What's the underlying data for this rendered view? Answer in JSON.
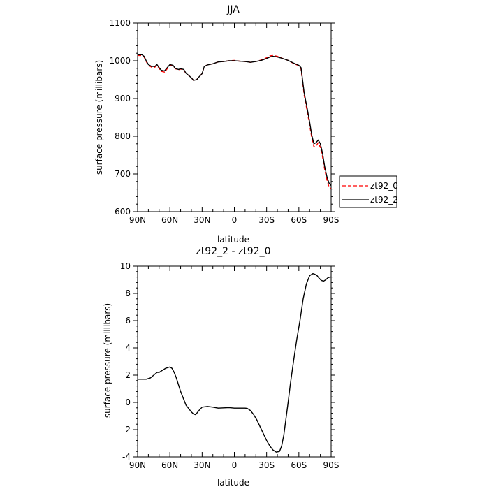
{
  "chart_data": [
    {
      "type": "line",
      "title": "JJA",
      "xlabel": "latitude",
      "ylabel": "surface pressure (millibars)",
      "xlim": [
        90,
        -90
      ],
      "ylim": [
        600,
        1100
      ],
      "x_ticks": [
        90,
        60,
        30,
        0,
        -30,
        -60,
        -90
      ],
      "x_tick_labels": [
        "90N",
        "60N",
        "30N",
        "0",
        "30S",
        "60S",
        "90S"
      ],
      "y_ticks": [
        600,
        700,
        800,
        900,
        1000,
        1100
      ],
      "y_tick_labels": [
        "600",
        "700",
        "800",
        "900",
        "1000",
        "1100"
      ],
      "grid": false,
      "legend": {
        "placement": "outside-right"
      },
      "series": [
        {
          "name": "zt92_0",
          "color": "#ff0000",
          "style": "dashed",
          "x": [
            90,
            86,
            84,
            82,
            80,
            77,
            74,
            72,
            70,
            68,
            65,
            63,
            60,
            57,
            55,
            52,
            50,
            47,
            45,
            42,
            40,
            38,
            35,
            33,
            30,
            28,
            25,
            20,
            15,
            10,
            5,
            0,
            -5,
            -10,
            -15,
            -20,
            -25,
            -30,
            -33,
            -36,
            -40,
            -45,
            -50,
            -55,
            -60,
            -62,
            -65,
            -68,
            -70,
            -72,
            -74,
            -76,
            -78,
            -80,
            -82,
            -84,
            -86,
            -88,
            -90
          ],
          "y": [
            1014,
            1014,
            1010,
            998,
            988,
            983,
            983,
            988,
            980,
            972,
            970,
            977,
            988,
            986,
            979,
            976,
            978,
            976,
            966,
            960,
            955,
            948,
            950,
            957,
            966,
            985,
            989,
            992,
            997,
            998,
            1000,
            1001,
            999,
            998,
            996,
            998,
            1002,
            1008,
            1013,
            1014,
            1012,
            1006,
            1001,
            993,
            987,
            978,
            908,
            862,
            830,
            796,
            772,
            774,
            783,
            770,
            745,
            712,
            686,
            666,
            660
          ]
        },
        {
          "name": "zt92_2",
          "color": "#000000",
          "style": "solid",
          "x": [
            90,
            86,
            84,
            82,
            80,
            77,
            74,
            72,
            70,
            68,
            65,
            63,
            60,
            57,
            55,
            52,
            50,
            47,
            45,
            42,
            40,
            38,
            35,
            33,
            30,
            28,
            25,
            20,
            15,
            10,
            5,
            0,
            -5,
            -10,
            -15,
            -20,
            -25,
            -30,
            -33,
            -36,
            -40,
            -45,
            -50,
            -55,
            -60,
            -62,
            -65,
            -68,
            -70,
            -72,
            -74,
            -76,
            -78,
            -80,
            -82,
            -84,
            -86,
            -88,
            -90
          ],
          "y": [
            1016,
            1016,
            1012,
            1000,
            990,
            985,
            985,
            990,
            982,
            975,
            973,
            980,
            990,
            988,
            980,
            977,
            979,
            977,
            967,
            960,
            955,
            948,
            950,
            957,
            966,
            985,
            989,
            992,
            997,
            998,
            1000,
            1000,
            999,
            998,
            996,
            998,
            1001,
            1006,
            1010,
            1012,
            1010,
            1006,
            1001,
            994,
            988,
            982,
            914,
            870,
            838,
            803,
            780,
            783,
            790,
            780,
            755,
            720,
            694,
            676,
            669
          ]
        }
      ]
    },
    {
      "type": "line",
      "title": "zt92_2 - zt92_0",
      "xlabel": "latitude",
      "ylabel": "surface pressure (millibars)",
      "xlim": [
        90,
        -90
      ],
      "ylim": [
        -4,
        10
      ],
      "x_ticks": [
        90,
        60,
        30,
        0,
        -30,
        -60,
        -90
      ],
      "x_tick_labels": [
        "90N",
        "60N",
        "30N",
        "0",
        "30S",
        "60S",
        "90S"
      ],
      "y_ticks": [
        -4,
        -2,
        0,
        2,
        4,
        6,
        8,
        10
      ],
      "y_tick_labels": [
        "-4",
        "-2",
        "0",
        "2",
        "4",
        "6",
        "8",
        "10"
      ],
      "grid": false,
      "series": [
        {
          "color": "#000000",
          "style": "solid",
          "x": [
            90,
            85,
            82,
            78,
            75,
            72,
            70,
            68,
            66,
            64,
            62,
            60,
            58,
            56,
            54,
            52,
            50,
            47,
            45,
            42,
            40,
            38,
            36,
            33,
            30,
            25,
            20,
            15,
            10,
            5,
            0,
            -5,
            -10,
            -12,
            -15,
            -18,
            -21,
            -24,
            -27,
            -30,
            -33,
            -36,
            -39,
            -42,
            -44,
            -46,
            -48,
            -50,
            -52,
            -55,
            -58,
            -61,
            -64,
            -67,
            -70,
            -73,
            -75,
            -77,
            -79,
            -81,
            -83,
            -85,
            -87,
            -89,
            -90
          ],
          "y": [
            1.7,
            1.7,
            1.7,
            1.8,
            2.0,
            2.2,
            2.2,
            2.3,
            2.4,
            2.5,
            2.55,
            2.6,
            2.5,
            2.2,
            1.8,
            1.3,
            0.8,
            0.2,
            -0.2,
            -0.5,
            -0.7,
            -0.85,
            -0.9,
            -0.6,
            -0.35,
            -0.3,
            -0.35,
            -0.42,
            -0.4,
            -0.38,
            -0.42,
            -0.42,
            -0.42,
            -0.44,
            -0.6,
            -0.9,
            -1.3,
            -1.8,
            -2.3,
            -2.8,
            -3.2,
            -3.5,
            -3.65,
            -3.6,
            -3.2,
            -2.4,
            -1.2,
            0.0,
            1.3,
            3.0,
            4.6,
            6.0,
            7.6,
            8.7,
            9.3,
            9.45,
            9.4,
            9.3,
            9.1,
            8.95,
            8.9,
            9.0,
            9.15,
            9.2,
            9.2
          ]
        }
      ]
    }
  ]
}
